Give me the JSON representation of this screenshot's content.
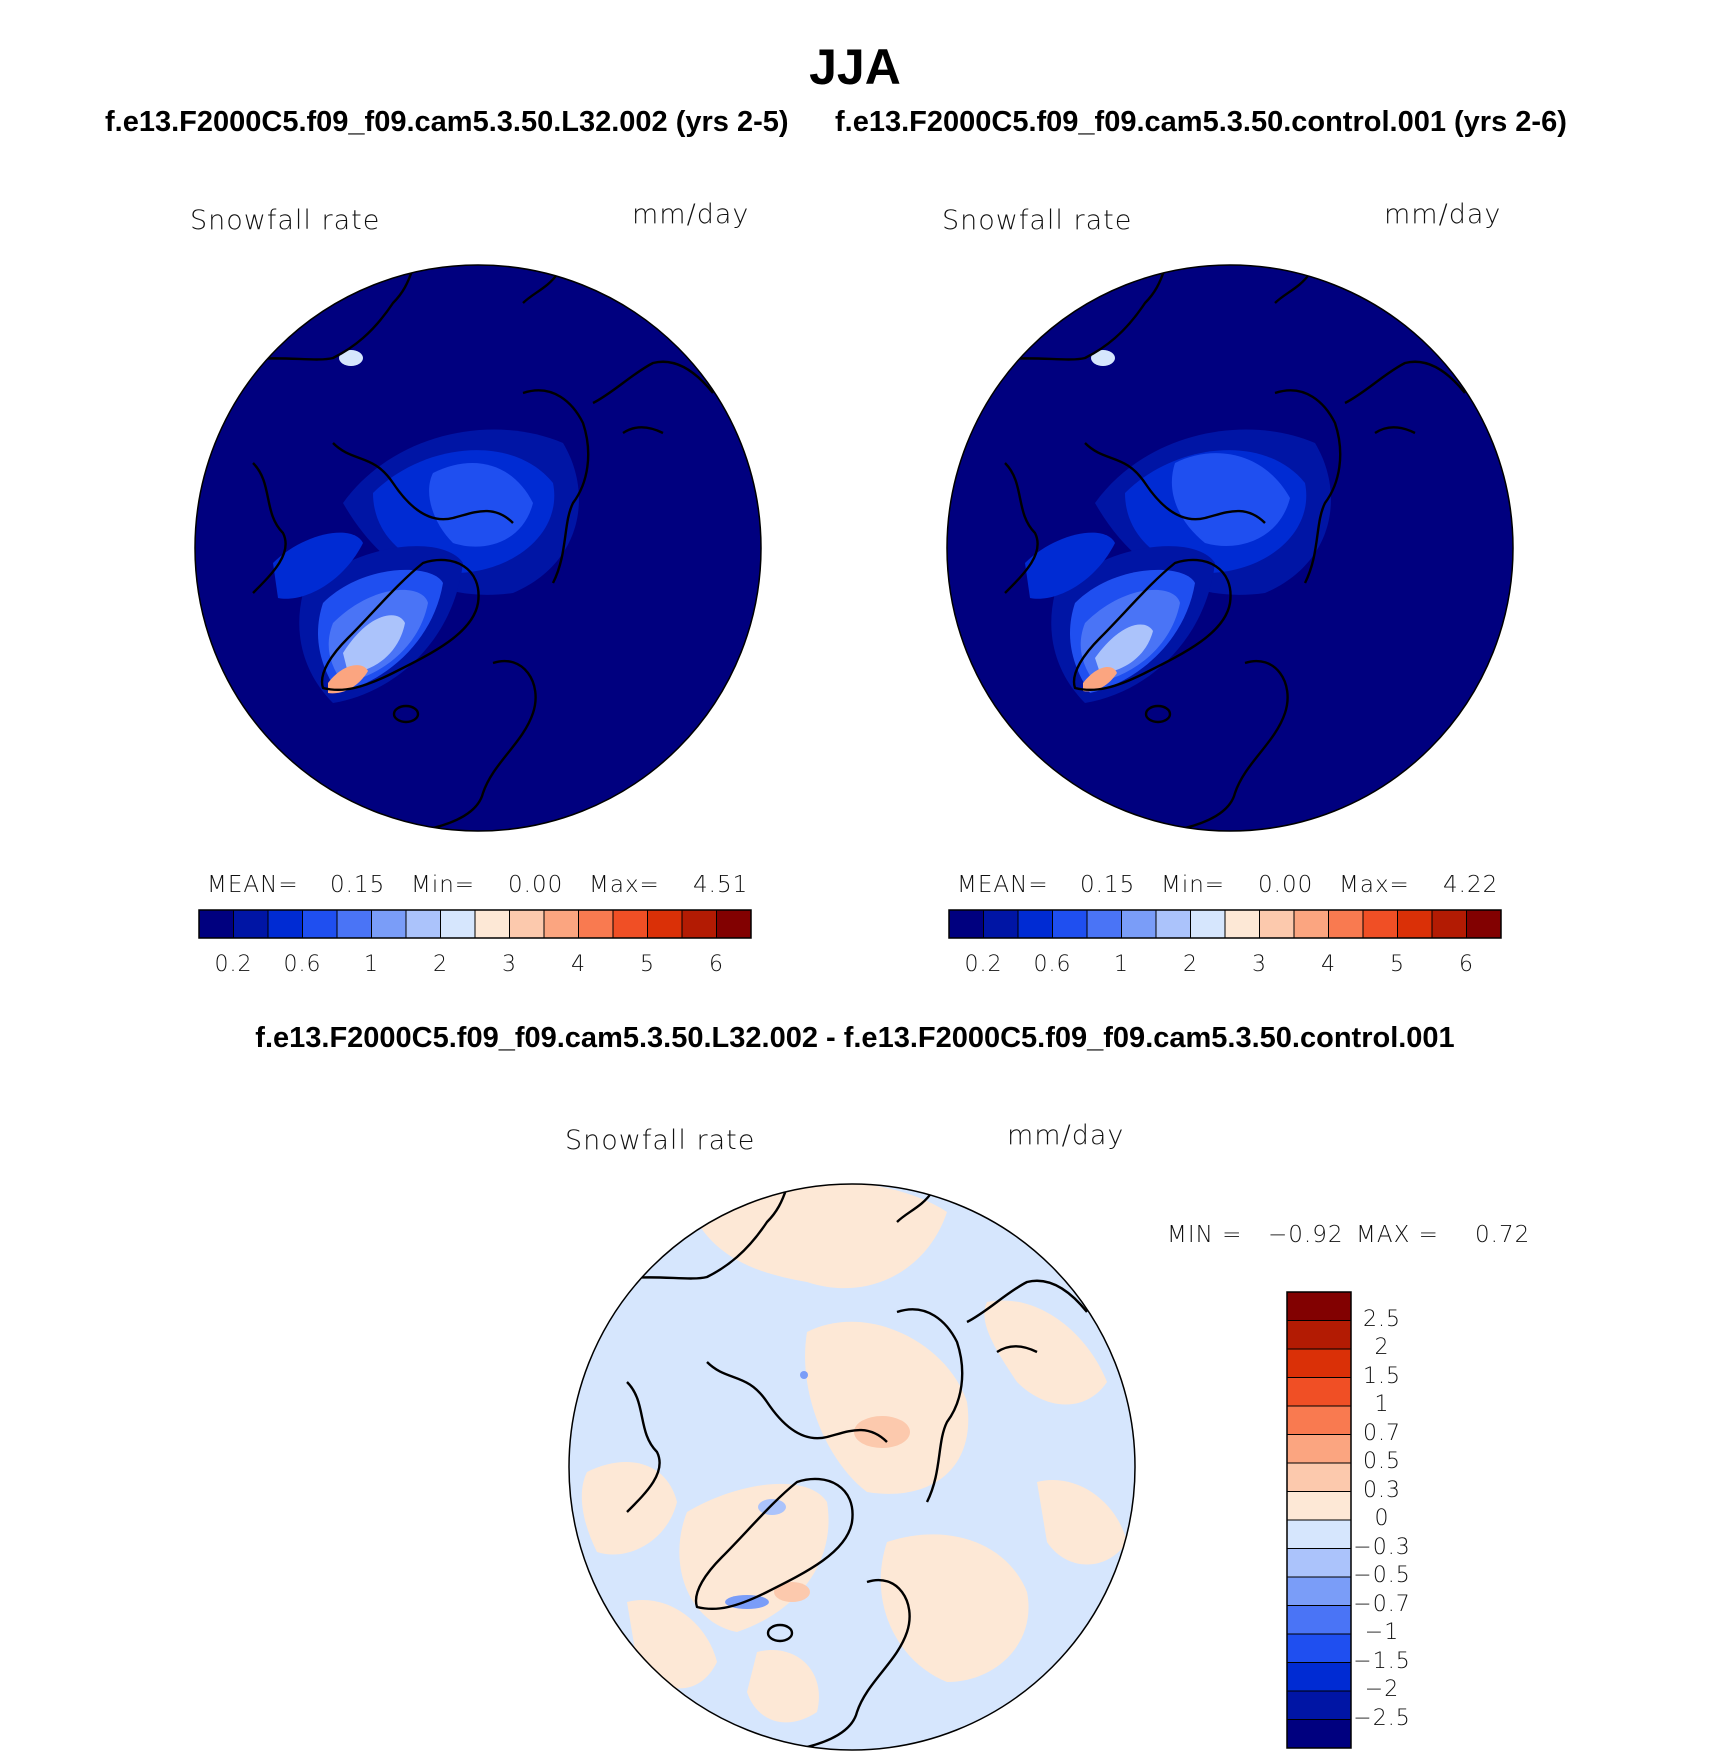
{
  "title": "JJA",
  "panels": [
    {
      "case_title": "f.e13.F2000C5.f09_f09.cam5.3.50.L32.002 (yrs 2-5)",
      "variable": "Snowfall rate",
      "units": "mm/day",
      "mean_label": "MEAN=",
      "mean": "0.15",
      "min_label": "Min=",
      "min": "0.00",
      "max_label": "Max=",
      "max": "4.51"
    },
    {
      "case_title": "f.e13.F2000C5.f09_f09.cam5.3.50.control.001 (yrs 2-6)",
      "variable": "Snowfall rate",
      "units": "mm/day",
      "mean_label": "MEAN=",
      "mean": "0.15",
      "min_label": "Min=",
      "min": "0.00",
      "max_label": "Max=",
      "max": "4.22"
    }
  ],
  "colorbar_abs": {
    "tick_labels": [
      "0.2",
      "0.6",
      "1",
      "2",
      "3",
      "4",
      "5",
      "6"
    ],
    "colors": [
      "#00007f",
      "#0015a5",
      "#002bd3",
      "#1f4ff0",
      "#4a74f6",
      "#7a9df8",
      "#abc3fb",
      "#d6e6fd",
      "#fde8d6",
      "#fcc9ad",
      "#fba580",
      "#f97a50",
      "#f04f25",
      "#da3007",
      "#b31b03",
      "#820101"
    ]
  },
  "difference": {
    "title": "f.e13.F2000C5.f09_f09.cam5.3.50.L32.002 - f.e13.F2000C5.f09_f09.cam5.3.50.control.001",
    "variable": "Snowfall rate",
    "units": "mm/day",
    "min_label": "MIN =",
    "min": "−0.92",
    "max_label": "MAX =",
    "max": "0.72",
    "colorbar_labels": [
      "2.5",
      "2",
      "1.5",
      "1",
      "0.7",
      "0.5",
      "0.3",
      "0",
      "−0.3",
      "−0.5",
      "−0.7",
      "−1",
      "−1.5",
      "−2",
      "−2.5"
    ],
    "colors": [
      "#820101",
      "#b31b03",
      "#da3007",
      "#f04f25",
      "#f97a50",
      "#fba580",
      "#fcc9ad",
      "#fde8d6",
      "#d6e6fd",
      "#abc3fb",
      "#7a9df8",
      "#4a74f6",
      "#1f4ff0",
      "#002bd3",
      "#0015a5",
      "#00007f"
    ]
  }
}
